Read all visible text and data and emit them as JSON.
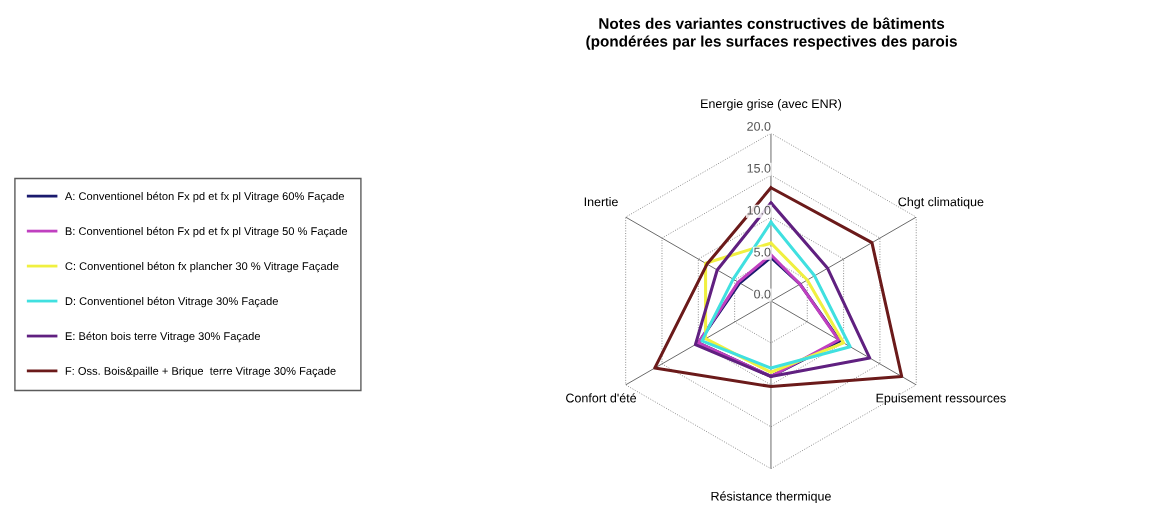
{
  "chart_data": {
    "type": "radar",
    "title": "Notes des variantes constructives de bâtiments\n(pondérées par les surfaces respectives des parois",
    "categories": [
      "Energie grise (avec ENR)",
      "Chgt climatique",
      "Epuisement ressources",
      "Résistance thermique",
      "Confort d'été",
      "Inertie"
    ],
    "ylim": [
      0,
      20
    ],
    "yticks": [
      {
        "value": 0,
        "label": "0.0"
      },
      {
        "value": 5,
        "label": "5.0"
      },
      {
        "value": 10,
        "label": "10.0"
      },
      {
        "value": 15,
        "label": "15.0"
      },
      {
        "value": 20,
        "label": "20.0"
      }
    ],
    "grid": true,
    "legend": "left",
    "line_style": "solid",
    "series": [
      {
        "name": "A: Conventionel béton Fx pd et fx pl Vitrage 60% Façade",
        "color": "#1a1a6e",
        "values": [
          5.2,
          4.0,
          9.5,
          9.0,
          10.0,
          4.3
        ]
      },
      {
        "name": "B: Conventionel béton Fx pd et fx pl Vitrage 50 % Façade",
        "color": "#c040c0",
        "values": [
          5.5,
          4.0,
          9.3,
          9.0,
          10.0,
          4.5
        ]
      },
      {
        "name": "C: Conventionel béton fx plancher 30 % Vitrage Façade",
        "color": "#f0f040",
        "values": [
          6.9,
          5.0,
          10.0,
          8.5,
          9.0,
          9.0
        ]
      },
      {
        "name": "D: Conventionel béton Vitrage 30% Façade",
        "color": "#40e0e0",
        "values": [
          9.4,
          6.0,
          10.9,
          8.0,
          9.5,
          5.2
        ]
      },
      {
        "name": "E: Béton bois terre Vitrage 30% Façade",
        "color": "#602080",
        "values": [
          11.7,
          7.8,
          13.6,
          9.0,
          10.4,
          7.4
        ]
      },
      {
        "name": "F: Oss. Bois&paille + Brique  terre Vitrage 30% Façade",
        "color": "#6b1a1a",
        "values": [
          13.5,
          13.9,
          18.0,
          10.2,
          16.0,
          8.8
        ]
      }
    ]
  }
}
